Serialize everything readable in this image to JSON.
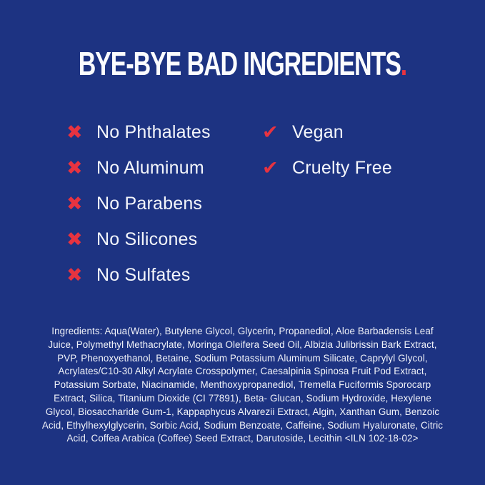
{
  "theme": {
    "background": "#1d3382",
    "accent_red": "#e73340",
    "text_white": "#fbfcfe"
  },
  "title": {
    "text": "BYE-BYE BAD INGREDIENTS",
    "period": "."
  },
  "glyphs": {
    "cross": "✖",
    "check": "✔"
  },
  "claims": {
    "excluded": [
      {
        "label": "No Phthalates"
      },
      {
        "label": "No Aluminum"
      },
      {
        "label": "No Parabens"
      },
      {
        "label": "No Silicones"
      },
      {
        "label": "No Sulfates"
      }
    ],
    "benefits": [
      {
        "label": "Vegan"
      },
      {
        "label": "Cruelty Free"
      }
    ]
  },
  "ingredients": {
    "text": "Ingredients: Aqua(Water), Butylene Glycol, Glycerin, Propanediol, Aloe Barbadensis Leaf Juice, Polymethyl Methacrylate, Moringa Oleifera Seed Oil, Albizia Julibrissin Bark Extract, PVP, Phenoxyethanol, Betaine, Sodium Potassium Aluminum Silicate, Caprylyl Glycol, Acrylates/C10-30 Alkyl Acrylate Crosspolymer, Caesalpinia Spinosa Fruit Pod Extract, Potassium Sorbate, Niacinamide, Menthoxypropanediol, Tremella Fuciformis Sporocarp Extract, Silica, Titanium Dioxide (CI 77891), Beta- Glucan, Sodium Hydroxide, Hexylene Glycol, Biosaccharide Gum-1, Kappaphycus Alvarezii Extract, Algin, Xanthan Gum, Benzoic Acid, Ethylhexylglycerin, Sorbic Acid, Sodium Benzoate, Caffeine, Sodium Hyaluronate, Citric Acid, Coffea Arabica (Coffee) Seed Extract, Darutoside, Lecithin <ILN 102-18-02>"
  }
}
